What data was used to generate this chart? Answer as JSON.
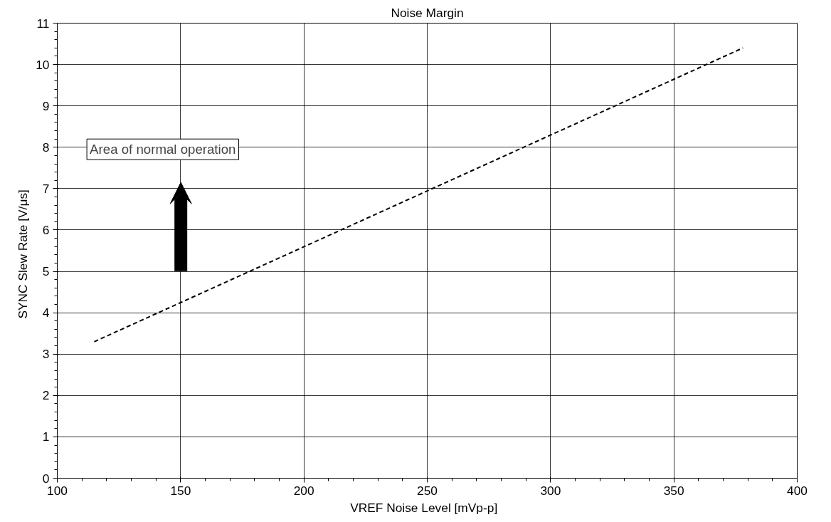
{
  "chart_data": {
    "type": "line",
    "title": "Noise Margin",
    "xlabel": "VREF Noise Level   [mVp-p]",
    "ylabel": "SYNC Slew Rate   [V/μs]",
    "x": [
      115,
      378
    ],
    "series": [
      {
        "color": "#000000",
        "values": [
          3.3,
          10.4
        ]
      }
    ],
    "line_style": "dashed",
    "marker": "none",
    "xlim": [
      100,
      400
    ],
    "xticks": [
      100,
      150,
      200,
      250,
      300,
      350,
      400
    ],
    "ylim": [
      0,
      11
    ],
    "yticks": [
      0,
      1,
      2,
      3,
      4,
      5,
      6,
      7,
      8,
      9,
      10,
      11
    ],
    "grid": true,
    "annotations": [
      "Area of normal operation"
    ]
  }
}
